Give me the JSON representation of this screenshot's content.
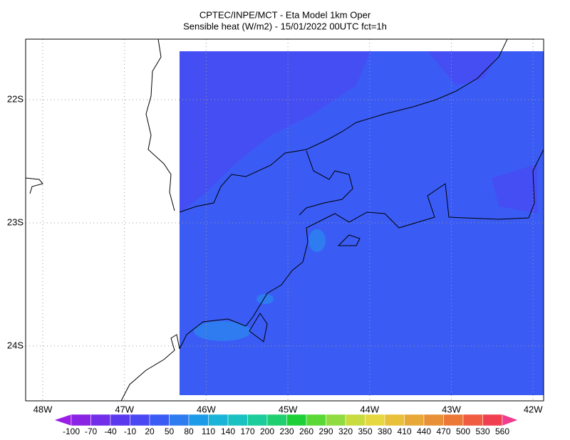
{
  "header": {
    "title": "CPTEC/INPE/MCT -  Eta Model 1km Oper",
    "subtitle": "Sensible heat (W/m2) - 15/01/2022 00UTC fct=1h"
  },
  "map": {
    "lat_labels": [
      "22S",
      "23S",
      "24S"
    ],
    "lon_labels": [
      "48W",
      "47W",
      "46W",
      "45W",
      "44W",
      "43W",
      "42W"
    ]
  },
  "colorbar": {
    "labels": [
      -100,
      -70,
      -40,
      -10,
      20,
      50,
      80,
      110,
      140,
      170,
      200,
      230,
      260,
      290,
      320,
      350,
      380,
      410,
      440,
      470,
      500,
      530,
      560
    ],
    "colors": [
      "#9a1ee6",
      "#8a24e4",
      "#722ee8",
      "#5a38ee",
      "#4a48f2",
      "#3a5cf5",
      "#2e7cf0",
      "#1e9be8",
      "#1ab4d8",
      "#19c2c0",
      "#1ccc9a",
      "#20d070",
      "#1ed038",
      "#5ad836",
      "#90dc40",
      "#c8dc40",
      "#e6d840",
      "#e8c03a",
      "#e8a838",
      "#e89038",
      "#ec7838",
      "#f05c40",
      "#f04050",
      "#f03c8c"
    ]
  }
}
